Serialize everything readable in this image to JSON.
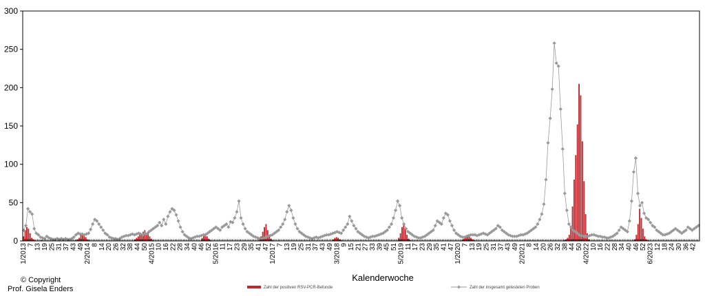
{
  "chart_data": {
    "type": "bar",
    "xlabel": "Kalenderwoche",
    "ylabel": "",
    "ylim": [
      0,
      300
    ],
    "yticks": [
      0,
      50,
      100,
      150,
      200,
      250,
      300
    ],
    "grid": false,
    "legend_placement": "bottom",
    "x_tick_labels": [
      "1/2013",
      "7",
      "13",
      "19",
      "25",
      "31",
      "37",
      "43",
      "49",
      "2/2014",
      "8",
      "14",
      "20",
      "26",
      "32",
      "38",
      "44",
      "50",
      "4/2015",
      "10",
      "16",
      "22",
      "28",
      "34",
      "40",
      "46",
      "52",
      "5/2016",
      "11",
      "17",
      "23",
      "29",
      "35",
      "41",
      "47",
      "1/2017",
      "7",
      "13",
      "19",
      "25",
      "31",
      "37",
      "43",
      "49",
      "3/2018",
      "9",
      "15",
      "21",
      "27",
      "33",
      "39",
      "45",
      "51",
      "5/2019",
      "11",
      "17",
      "23",
      "29",
      "35",
      "41",
      "47",
      "1/2020",
      "7",
      "13",
      "19",
      "25",
      "31",
      "37",
      "43",
      "49",
      "2/2021",
      "8",
      "14",
      "20",
      "26",
      "32",
      "38",
      "44",
      "50",
      "4/2022",
      "10",
      "16",
      "22",
      "28",
      "34",
      "40",
      "46",
      "52",
      "6/2023",
      "12",
      "18",
      "24",
      "30",
      "36",
      "42"
    ],
    "series": [
      {
        "name": "Zahl der positiven RSV-PCR-Befunde",
        "kind": "bar",
        "color": "#c0282d",
        "values": [
          6,
          14,
          18,
          16,
          10,
          4,
          2,
          1,
          0,
          0,
          0,
          1,
          0,
          0,
          0,
          0,
          0,
          0,
          0,
          0,
          0,
          0,
          0,
          0,
          0,
          0,
          0,
          0,
          0,
          0,
          0,
          0,
          1,
          2,
          4,
          8,
          10,
          8,
          5,
          2,
          1,
          0,
          0,
          0,
          0,
          0,
          0,
          0,
          0,
          0,
          0,
          0,
          0,
          0,
          0,
          0,
          0,
          0,
          0,
          0,
          0,
          0,
          0,
          0,
          0,
          0,
          0,
          0,
          2,
          4,
          6,
          10,
          8,
          12,
          14,
          10,
          12,
          6,
          3,
          1,
          0,
          0,
          0,
          0,
          0,
          0,
          0,
          0,
          0,
          0,
          0,
          0,
          0,
          0,
          0,
          0,
          0,
          0,
          0,
          0,
          0,
          0,
          0,
          0,
          0,
          0,
          0,
          0,
          0,
          4,
          8,
          10,
          6,
          3,
          1,
          0,
          0,
          0,
          0,
          0,
          0,
          0,
          0,
          0,
          0,
          0,
          0,
          0,
          0,
          0,
          0,
          0,
          0,
          0,
          0,
          0,
          0,
          0,
          0,
          0,
          0,
          0,
          0,
          0,
          2,
          6,
          12,
          18,
          22,
          14,
          8,
          3,
          1,
          0,
          0,
          0,
          0,
          0,
          0,
          0,
          0,
          0,
          0,
          0,
          0,
          0,
          0,
          0,
          0,
          0,
          0,
          0,
          0,
          0,
          0,
          0,
          0,
          0,
          0,
          0,
          0,
          0,
          0,
          0,
          0,
          0,
          0,
          0,
          0,
          2,
          4,
          5,
          4,
          2,
          1,
          0,
          0,
          0,
          0,
          0,
          0,
          0,
          0,
          0,
          0,
          0,
          0,
          0,
          0,
          0,
          0,
          0,
          0,
          0,
          0,
          0,
          0,
          0,
          0,
          0,
          0,
          0,
          0,
          0,
          0,
          0,
          0,
          0,
          0,
          4,
          10,
          18,
          22,
          16,
          8,
          3,
          1,
          0,
          0,
          0,
          0,
          0,
          0,
          0,
          0,
          0,
          0,
          0,
          0,
          0,
          0,
          0,
          0,
          0,
          0,
          0,
          0,
          0,
          0,
          0,
          0,
          0,
          0,
          0,
          0,
          0,
          0,
          0,
          2,
          4,
          6,
          8,
          6,
          4,
          2,
          1,
          0,
          0,
          0,
          0,
          0,
          0,
          0,
          0,
          0,
          0,
          0,
          0,
          0,
          0,
          0,
          0,
          0,
          0,
          0,
          0,
          0,
          0,
          0,
          0,
          0,
          0,
          0,
          0,
          0,
          0,
          0,
          0,
          0,
          0,
          0,
          0,
          0,
          0,
          0,
          0,
          0,
          0,
          0,
          0,
          0,
          0,
          0,
          0,
          0,
          0,
          0,
          0,
          0,
          0,
          1,
          2,
          4,
          8,
          20,
          45,
          80,
          112,
          152,
          205,
          190,
          130,
          78,
          35,
          10,
          2,
          0,
          0,
          0,
          0,
          0,
          0,
          0,
          0,
          0,
          0,
          0,
          0,
          0,
          0,
          0,
          0,
          0,
          0,
          0,
          0,
          0,
          0,
          0,
          0,
          0,
          0,
          0,
          2,
          8,
          22,
          42,
          30,
          16,
          6,
          2,
          1,
          0,
          0,
          0,
          0,
          0,
          0,
          0,
          0,
          0,
          0,
          0,
          0,
          0,
          0,
          0,
          0,
          0,
          0,
          0,
          0,
          0,
          0,
          0,
          0,
          0,
          0,
          0,
          0,
          0,
          0,
          0
        ]
      },
      {
        "name": "Zahl der insgesamt getesteten Proben",
        "kind": "line",
        "color": "#999999",
        "values": [
          14,
          20,
          42,
          38,
          35,
          16,
          10,
          8,
          5,
          4,
          3,
          6,
          4,
          3,
          2,
          2,
          3,
          2,
          3,
          2,
          3,
          2,
          2,
          3,
          5,
          8,
          10,
          9,
          9,
          8,
          9,
          10,
          15,
          22,
          28,
          26,
          22,
          18,
          14,
          10,
          8,
          5,
          4,
          3,
          3,
          2,
          3,
          5,
          6,
          7,
          7,
          8,
          9,
          8,
          9,
          10,
          9,
          8,
          10,
          9,
          12,
          14,
          16,
          18,
          20,
          24,
          20,
          28,
          22,
          32,
          38,
          42,
          40,
          34,
          26,
          18,
          12,
          8,
          6,
          4,
          3,
          4,
          5,
          6,
          6,
          7,
          8,
          8,
          10,
          12,
          14,
          16,
          18,
          16,
          14,
          18,
          20,
          22,
          18,
          25,
          24,
          30,
          38,
          52,
          30,
          22,
          16,
          12,
          10,
          8,
          6,
          5,
          4,
          3,
          3,
          4,
          5,
          6,
          7,
          8,
          10,
          12,
          14,
          18,
          22,
          28,
          38,
          46,
          40,
          30,
          22,
          16,
          12,
          10,
          8,
          6,
          5,
          4,
          3,
          4,
          5,
          4,
          5,
          6,
          7,
          8,
          8,
          9,
          10,
          11,
          12,
          11,
          10,
          14,
          18,
          22,
          32,
          26,
          20,
          16,
          12,
          10,
          8,
          6,
          5,
          4,
          5,
          6,
          6,
          7,
          8,
          9,
          10,
          12,
          14,
          18,
          22,
          30,
          40,
          52,
          46,
          30,
          22,
          16,
          12,
          10,
          8,
          6,
          5,
          4,
          4,
          5,
          6,
          8,
          10,
          12,
          14,
          20,
          26,
          24,
          22,
          30,
          36,
          34,
          26,
          20,
          14,
          10,
          8,
          6,
          5,
          5,
          6,
          7,
          8,
          8,
          8,
          7,
          8,
          9,
          10,
          9,
          8,
          10,
          12,
          14,
          16,
          20,
          18,
          14,
          12,
          10,
          8,
          7,
          6,
          6,
          6,
          7,
          8,
          8,
          9,
          10,
          12,
          14,
          16,
          18,
          22,
          28,
          35,
          48,
          80,
          128,
          160,
          198,
          258,
          232,
          228,
          172,
          120,
          62,
          40,
          22,
          18,
          14,
          12,
          10,
          8,
          7,
          6,
          6,
          6,
          7,
          8,
          8,
          7,
          6,
          6,
          5,
          5,
          4,
          4,
          5,
          6,
          8,
          10,
          14,
          18,
          16,
          14,
          12,
          26,
          52,
          90,
          108,
          62,
          46,
          50,
          36,
          30,
          28,
          24,
          20,
          18,
          14,
          12,
          10,
          8,
          8,
          9,
          10,
          12,
          14,
          16,
          14,
          12,
          10,
          12,
          14,
          18,
          16,
          14,
          16,
          18,
          20
        ]
      }
    ]
  },
  "copyright": {
    "line1": "© Copyright",
    "line2": "Prof. Gisela Enders"
  }
}
